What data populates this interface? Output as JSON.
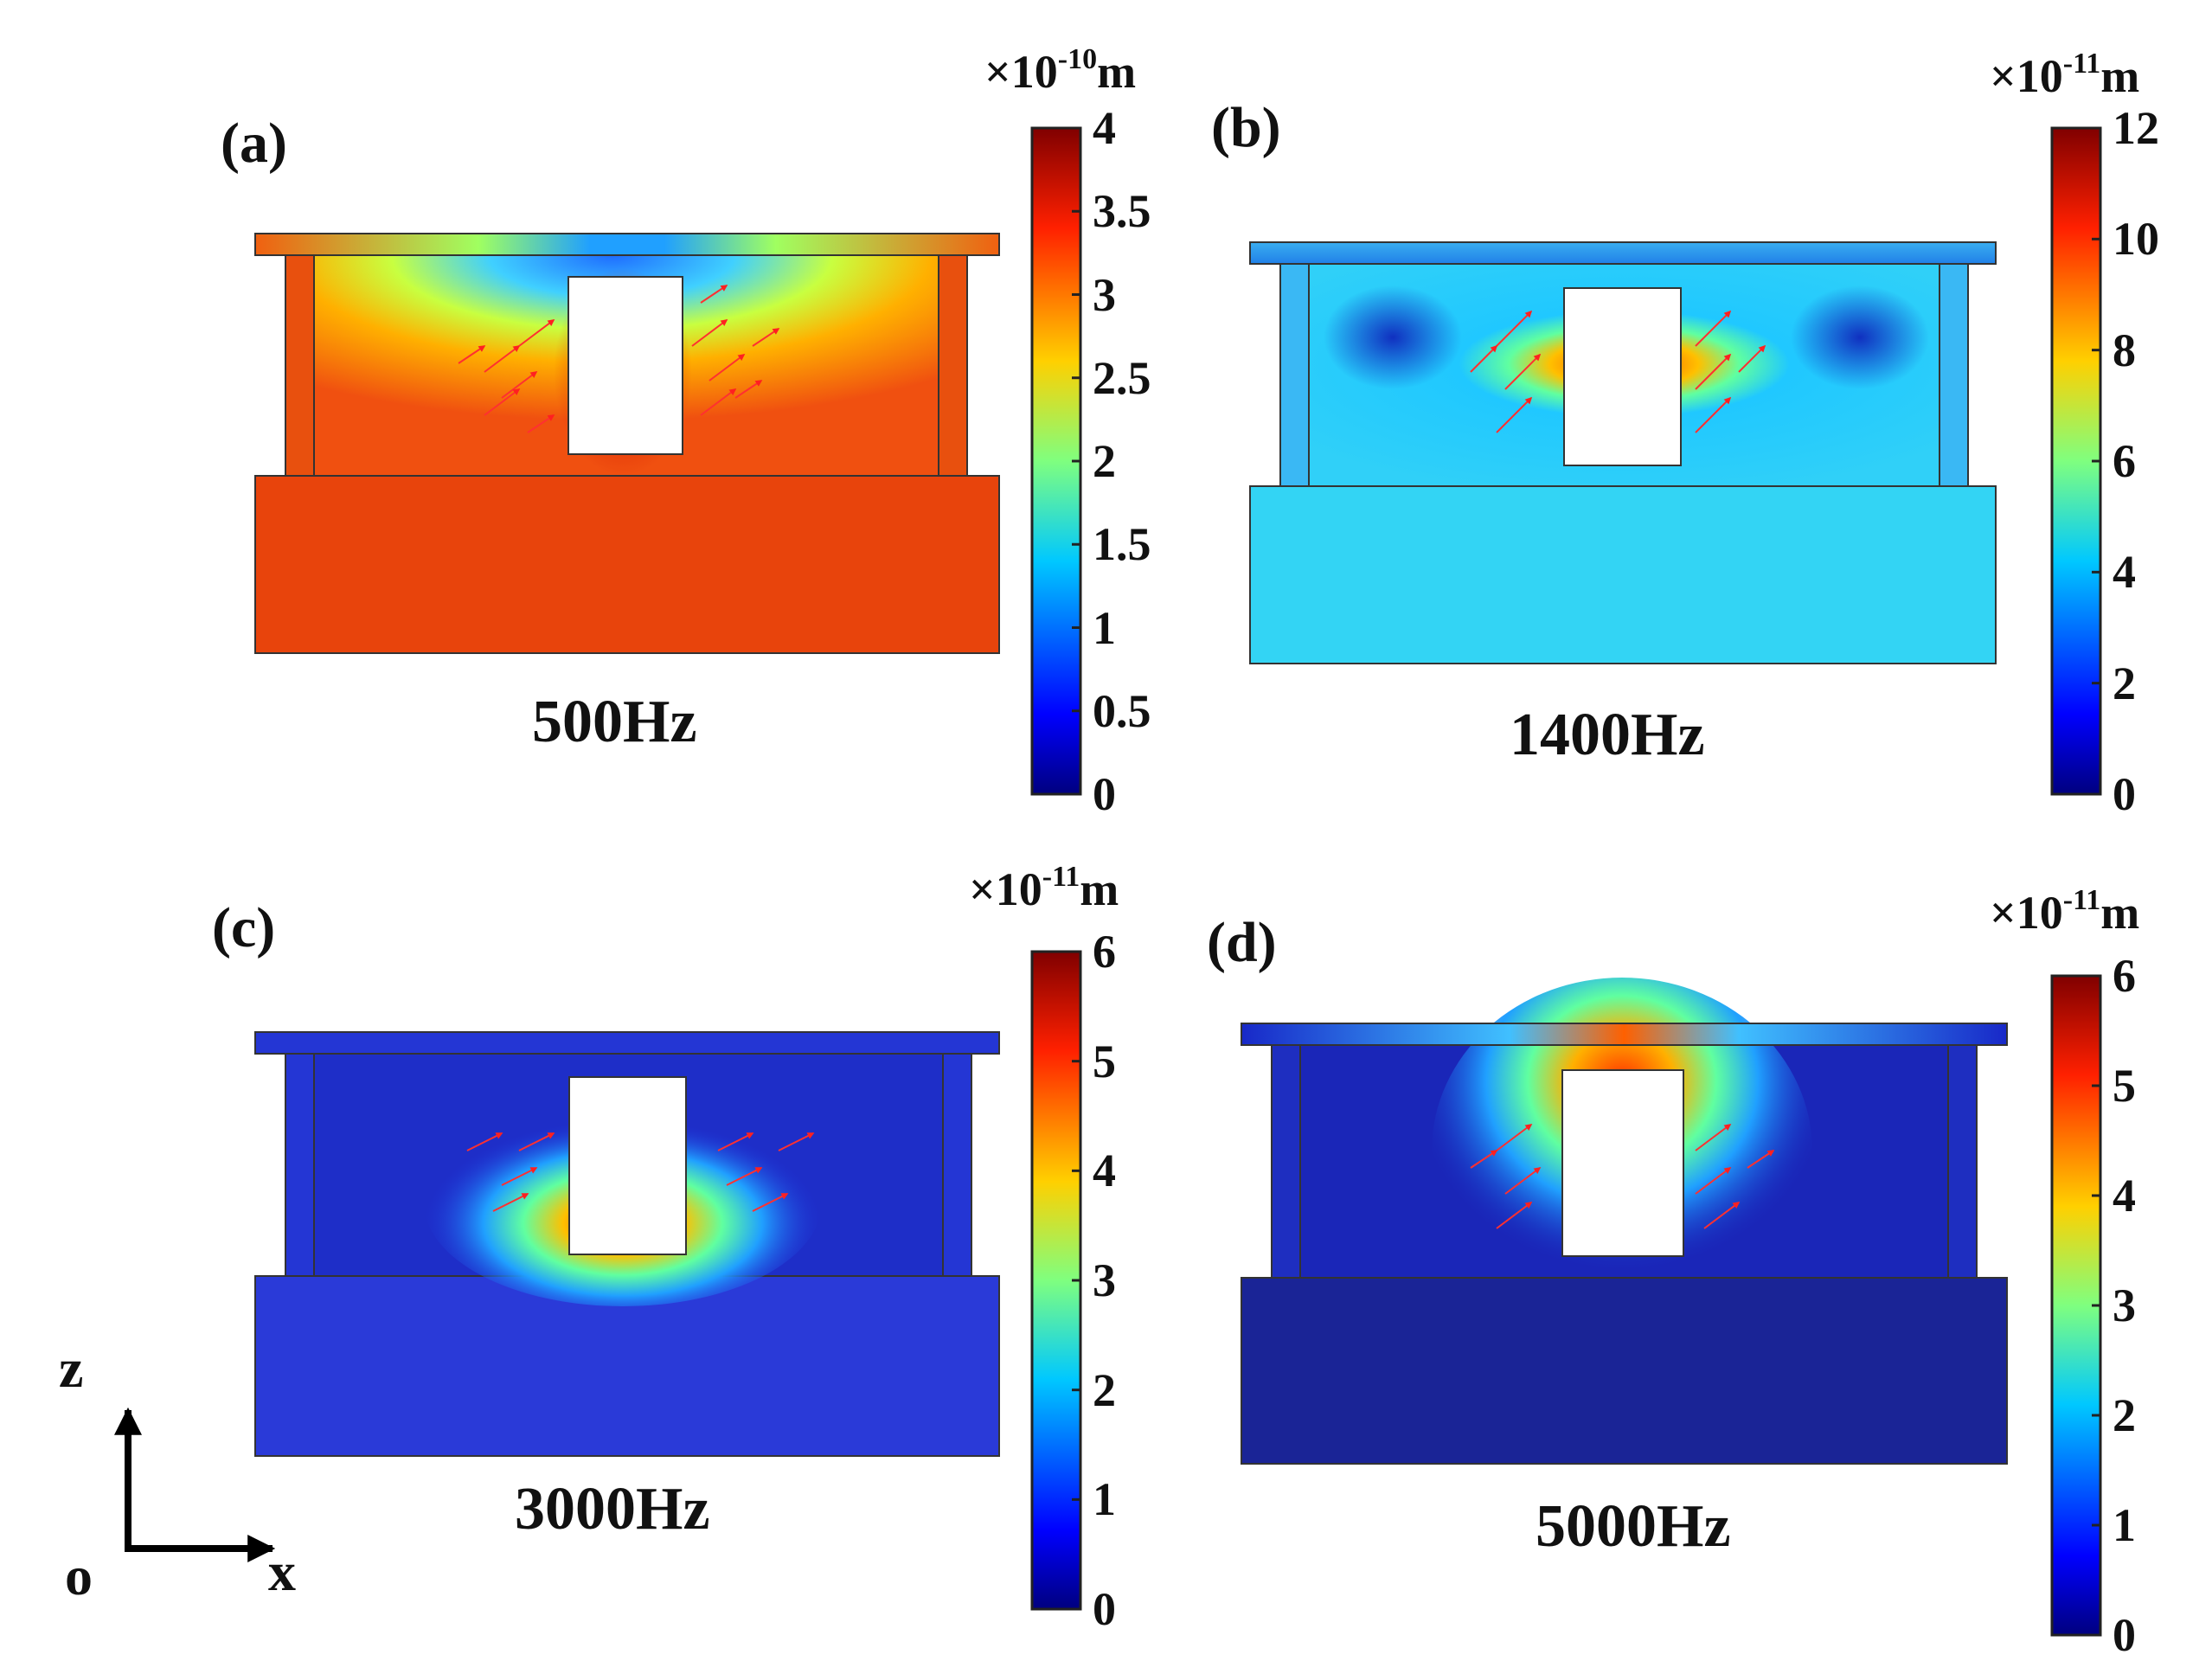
{
  "panels": [
    {
      "label": "(a)",
      "frequency": "500Hz",
      "unit_prefix": "×10",
      "unit_exp": "-10",
      "unit_suffix": "m",
      "ticks": [
        "4",
        "3.5",
        "3",
        "2.5",
        "2",
        "1.5",
        "1",
        "0.5",
        "0"
      ],
      "scale_max": 4
    },
    {
      "label": "(b)",
      "frequency": "1400Hz",
      "unit_prefix": "×10",
      "unit_exp": "-11",
      "unit_suffix": "m",
      "ticks": [
        "12",
        "10",
        "8",
        "6",
        "4",
        "2",
        "0"
      ],
      "scale_max": 12
    },
    {
      "label": "(c)",
      "frequency": "3000Hz",
      "unit_prefix": "×10",
      "unit_exp": "-11",
      "unit_suffix": "m",
      "ticks": [
        "6",
        "5",
        "4",
        "3",
        "2",
        "1",
        "0"
      ],
      "scale_max": 6
    },
    {
      "label": "(d)",
      "frequency": "5000Hz",
      "unit_prefix": "×10",
      "unit_exp": "-11",
      "unit_suffix": "m",
      "ticks": [
        "6",
        "5",
        "4",
        "3",
        "2",
        "1",
        "0"
      ],
      "scale_max": 6
    }
  ],
  "axes": {
    "z": "z",
    "o": "o",
    "x": "x"
  },
  "colormap": "jet"
}
